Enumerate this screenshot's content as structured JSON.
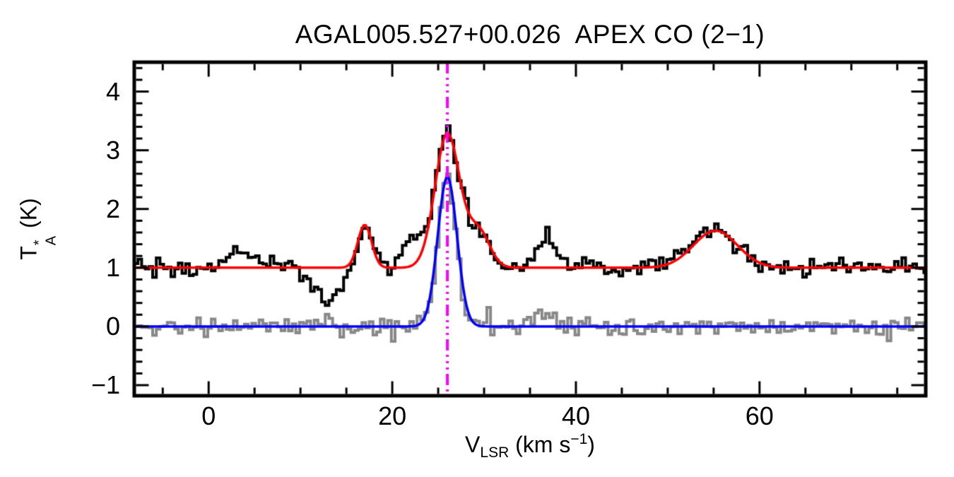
{
  "chart_data": {
    "type": "line",
    "title": "AGAL005.527+00.026  APEX CO (2−1)",
    "xlabel": {
      "pre": "V",
      "sub": "LSR",
      "mid": " (km s",
      "sup": "−1",
      "post": ")"
    },
    "ylabel": {
      "base": "T",
      "sup": "*",
      "sub": "A",
      "post": " (K)"
    },
    "xlim": [
      -8.1,
      78.1
    ],
    "ylim": [
      -1.18,
      4.5
    ],
    "xticks": {
      "major": [
        {
          "v": 0,
          "label": "0"
        },
        {
          "v": 20,
          "label": "20"
        },
        {
          "v": 40,
          "label": "40"
        },
        {
          "v": 60,
          "label": "60"
        }
      ],
      "minor_step": 5
    },
    "yticks": {
      "major": [
        {
          "v": -1,
          "label": "−1"
        },
        {
          "v": 0,
          "label": "0"
        },
        {
          "v": 1,
          "label": "1"
        },
        {
          "v": 2,
          "label": "2"
        },
        {
          "v": 3,
          "label": "3"
        },
        {
          "v": 4,
          "label": "4"
        }
      ],
      "minor_step": 0.2
    },
    "bin_width": 0.4,
    "noise_seed": 20260526,
    "series": [
      {
        "name": "gray-spectrum-histogram",
        "style": "histogram",
        "color": "#888888",
        "line_width": 4,
        "baseline": 0.0,
        "noise_amp": 0.12,
        "components": [
          {
            "c": 26.0,
            "a": 2.5,
            "s": 1.0
          },
          {
            "c": 36.6,
            "a": 0.15,
            "s": 1.0
          }
        ]
      },
      {
        "name": "black-co-spectrum-histogram",
        "style": "histogram",
        "color": "#000000",
        "line_width": 4,
        "baseline": 1.0,
        "noise_amp": 0.12,
        "components": [
          {
            "c": 17.0,
            "a": 0.72,
            "s": 0.8
          },
          {
            "c": 26.0,
            "a": 2.3,
            "s": 1.35
          },
          {
            "c": 29.3,
            "a": 0.6,
            "s": 1.15
          },
          {
            "c": 55.0,
            "a": 0.62,
            "s": 2.4
          },
          {
            "c": 13.2,
            "a": -0.55,
            "s": 1.5
          },
          {
            "c": 36.6,
            "a": 0.48,
            "s": 1.0
          },
          {
            "c": 22.3,
            "a": 0.45,
            "s": 1.0
          },
          {
            "c": 3.8,
            "a": 0.26,
            "s": 1.8
          }
        ]
      },
      {
        "name": "red-multi-gaussian-fit-curve",
        "style": "curve",
        "color": "#ff0000",
        "line_width": 3.5,
        "baseline": 1.0,
        "noise_amp": 0,
        "components": [
          {
            "c": 17.0,
            "a": 0.73,
            "s": 0.75
          },
          {
            "c": 26.0,
            "a": 2.28,
            "s": 1.35
          },
          {
            "c": 29.4,
            "a": 0.62,
            "s": 1.2
          },
          {
            "c": 55.2,
            "a": 0.63,
            "s": 2.4
          }
        ]
      },
      {
        "name": "blue-gaussian-fit-curve",
        "style": "curve",
        "color": "#0000ff",
        "line_width": 3.5,
        "baseline": 0.0,
        "noise_amp": 0,
        "components": [
          {
            "c": 26.0,
            "a": 2.55,
            "s": 1.05
          }
        ]
      }
    ],
    "vline": {
      "x": 26.0,
      "color": "#ff00ff",
      "line_width": 4,
      "dash": [
        16,
        6,
        3,
        6,
        3,
        6,
        3,
        6
      ]
    },
    "frame_color": "#000000",
    "background": "#ffffff"
  }
}
